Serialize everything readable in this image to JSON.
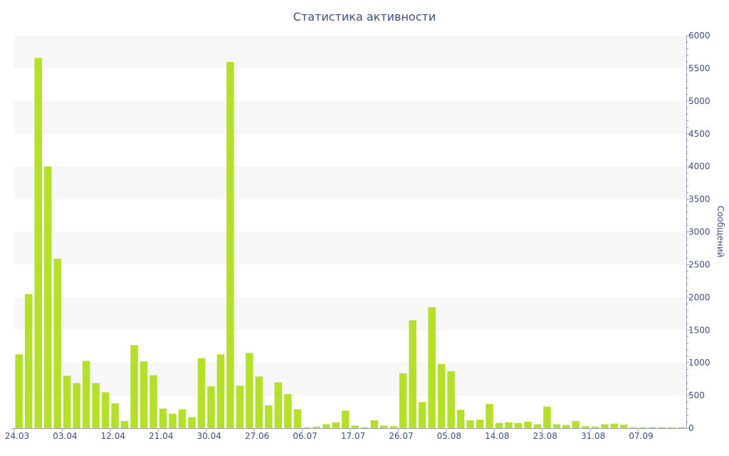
{
  "chart_data": {
    "type": "bar",
    "title": "Статистика активности",
    "ylabel": "Сообщений",
    "ylim": [
      0,
      6000
    ],
    "y_ticks": [
      0,
      500,
      1000,
      1500,
      2000,
      2500,
      3000,
      3500,
      4000,
      4500,
      5000,
      5500,
      6000
    ],
    "y_axis_side": "right",
    "grid": "alternating horizontal bands",
    "bar_color": "#b5e02a",
    "band_color": "#f7f7f7",
    "text_color": "#3e4d8a",
    "x_tick_labels": [
      {
        "index": 0,
        "label": "24.03"
      },
      {
        "index": 5,
        "label": "03.04"
      },
      {
        "index": 10,
        "label": "12.04"
      },
      {
        "index": 15,
        "label": "21.04"
      },
      {
        "index": 20,
        "label": "30.04"
      },
      {
        "index": 25,
        "label": "27.06"
      },
      {
        "index": 30,
        "label": "06.07"
      },
      {
        "index": 35,
        "label": "17.07"
      },
      {
        "index": 40,
        "label": "26.07"
      },
      {
        "index": 45,
        "label": "05.08"
      },
      {
        "index": 50,
        "label": "14.08"
      },
      {
        "index": 55,
        "label": "23.08"
      },
      {
        "index": 60,
        "label": "31.08"
      },
      {
        "index": 65,
        "label": "07.09"
      }
    ],
    "values": [
      1130,
      2050,
      5660,
      4000,
      2590,
      800,
      690,
      1030,
      690,
      550,
      380,
      110,
      1270,
      1020,
      810,
      300,
      220,
      290,
      170,
      1070,
      640,
      1130,
      5600,
      650,
      1150,
      790,
      350,
      700,
      520,
      290,
      15,
      25,
      60,
      90,
      270,
      40,
      15,
      120,
      40,
      30,
      840,
      1650,
      400,
      1850,
      980,
      870,
      280,
      120,
      130,
      370,
      80,
      90,
      80,
      100,
      60,
      330,
      60,
      50,
      110,
      30,
      25,
      60,
      70,
      55,
      15,
      15,
      15,
      15,
      15,
      15
    ]
  }
}
